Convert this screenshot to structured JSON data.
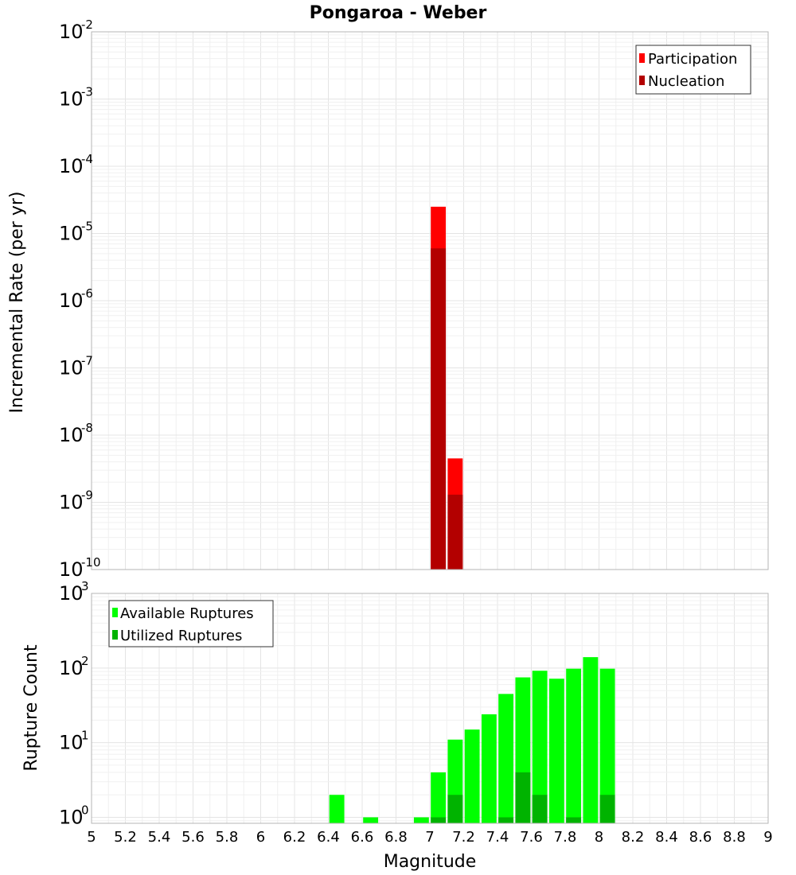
{
  "chart_data": [
    {
      "type": "bar",
      "title": "Pongaroa - Weber",
      "ylabel": "Incremental Rate (per yr)",
      "xlabel": "",
      "yscale": "log",
      "ylim_exp": [
        -10,
        -2
      ],
      "xlim": [
        5,
        9
      ],
      "bin_width": 0.1,
      "grid": true,
      "legend_position": "top-right",
      "series": [
        {
          "name": "Participation",
          "color": "#ff0000",
          "points": [
            {
              "x": 7.05,
              "y": 2.5e-05
            },
            {
              "x": 7.15,
              "y": 4.5e-09
            }
          ]
        },
        {
          "name": "Nucleation",
          "color": "#b30000",
          "points": [
            {
              "x": 7.05,
              "y": 6e-06
            },
            {
              "x": 7.15,
              "y": 1.3e-09
            }
          ]
        }
      ]
    },
    {
      "type": "bar",
      "title": "",
      "ylabel": "Rupture Count",
      "xlabel": "Magnitude",
      "yscale": "log",
      "ylim_exp": [
        -0.08,
        3
      ],
      "xlim": [
        5,
        9
      ],
      "bin_width": 0.1,
      "grid": true,
      "legend_position": "top-left",
      "x_ticks": [
        "5",
        "5.2",
        "5.4",
        "5.6",
        "5.8",
        "6",
        "6.2",
        "6.4",
        "6.6",
        "6.8",
        "7",
        "7.2",
        "7.4",
        "7.6",
        "7.8",
        "8",
        "8.2",
        "8.4",
        "8.6",
        "8.8",
        "9"
      ],
      "series": [
        {
          "name": "Available Ruptures",
          "color": "#00ff00",
          "points": [
            {
              "x": 6.45,
              "y": 2
            },
            {
              "x": 6.65,
              "y": 1
            },
            {
              "x": 6.95,
              "y": 1
            },
            {
              "x": 7.05,
              "y": 4
            },
            {
              "x": 7.15,
              "y": 11
            },
            {
              "x": 7.25,
              "y": 15
            },
            {
              "x": 7.35,
              "y": 24
            },
            {
              "x": 7.45,
              "y": 45
            },
            {
              "x": 7.55,
              "y": 75
            },
            {
              "x": 7.65,
              "y": 92
            },
            {
              "x": 7.75,
              "y": 72
            },
            {
              "x": 7.85,
              "y": 98
            },
            {
              "x": 7.95,
              "y": 140
            },
            {
              "x": 8.05,
              "y": 98
            }
          ]
        },
        {
          "name": "Utilized Ruptures",
          "color": "#00b300",
          "points": [
            {
              "x": 7.05,
              "y": 1
            },
            {
              "x": 7.15,
              "y": 2
            },
            {
              "x": 7.45,
              "y": 1
            },
            {
              "x": 7.55,
              "y": 4
            },
            {
              "x": 7.65,
              "y": 2
            },
            {
              "x": 7.85,
              "y": 1
            },
            {
              "x": 8.05,
              "y": 2
            }
          ]
        }
      ]
    }
  ]
}
